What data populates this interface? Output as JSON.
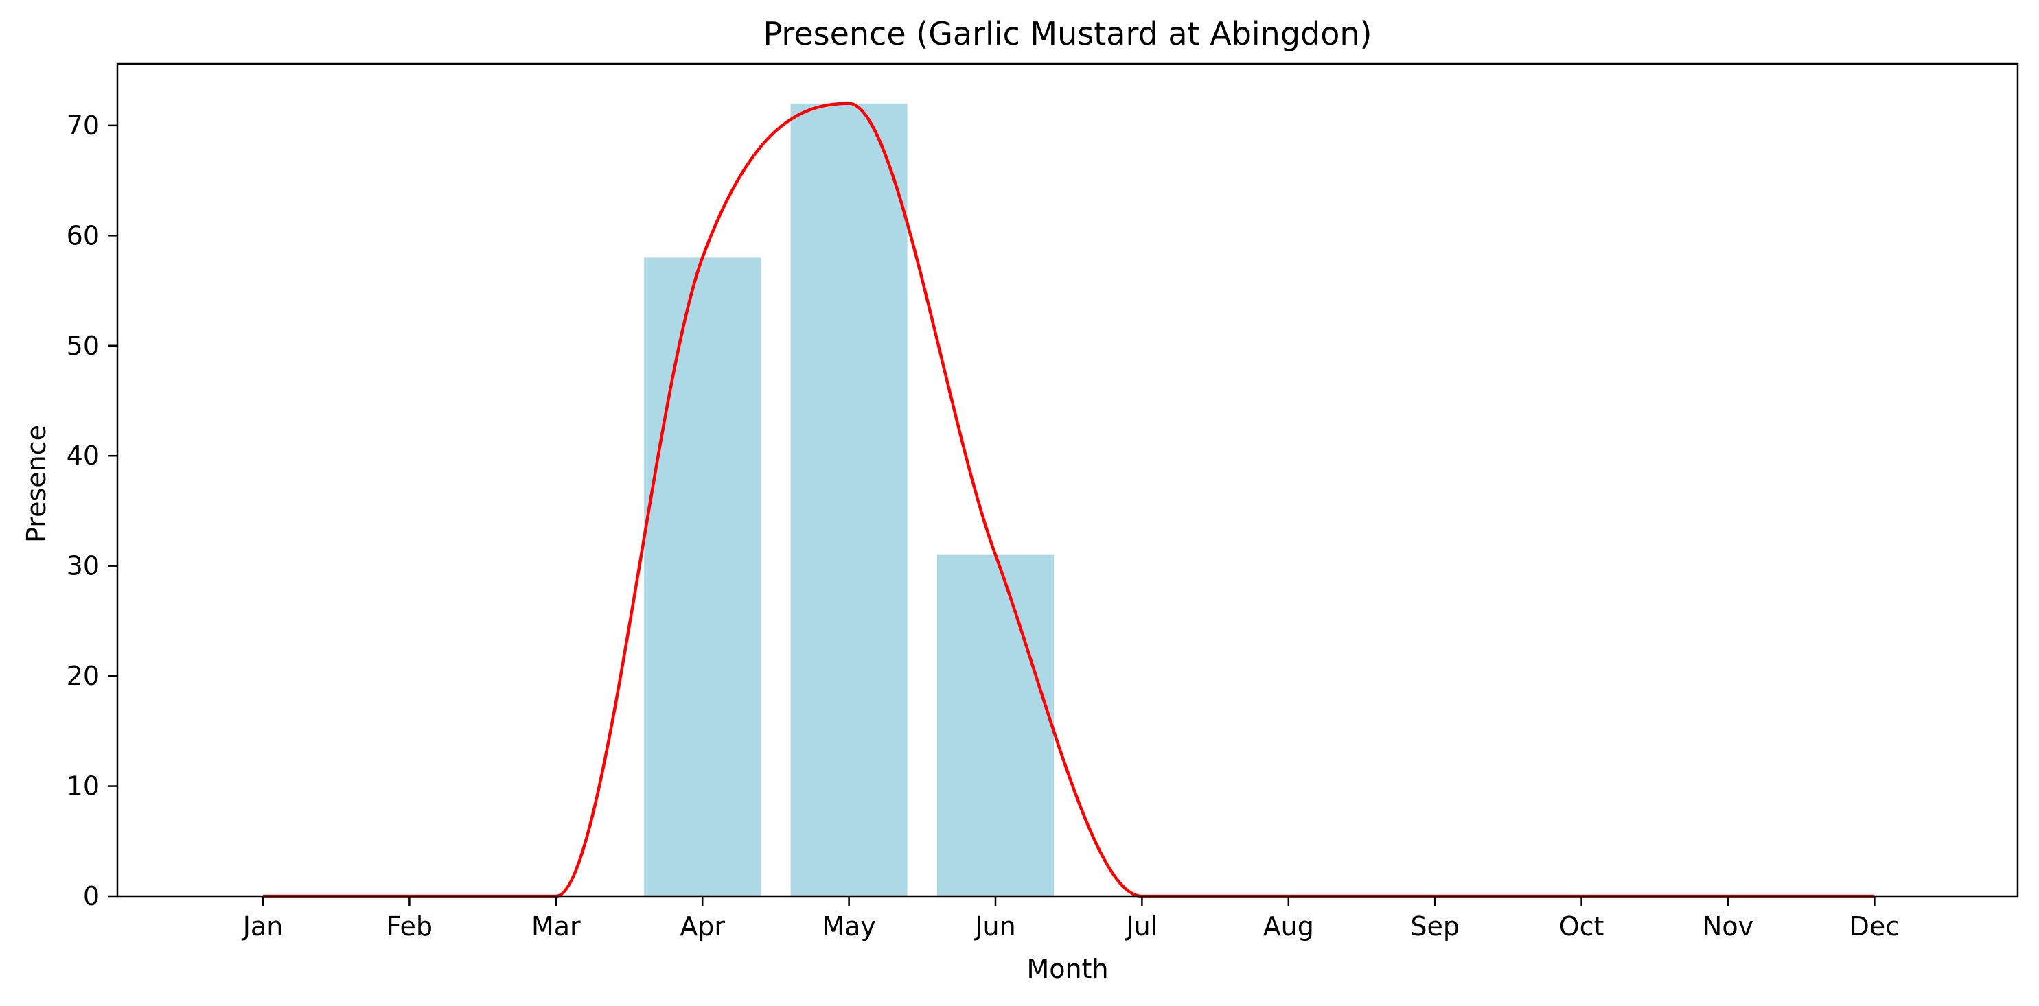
{
  "chart_data": {
    "type": "bar",
    "title": "Presence (Garlic Mustard at Abingdon)",
    "xlabel": "Month",
    "ylabel": "Presence",
    "categories": [
      "Jan",
      "Feb",
      "Mar",
      "Apr",
      "May",
      "Jun",
      "Jul",
      "Aug",
      "Sep",
      "Oct",
      "Nov",
      "Dec"
    ],
    "values": [
      0,
      0,
      0,
      58,
      72,
      31,
      0,
      0,
      0,
      0,
      0,
      0
    ],
    "ylim": [
      0,
      75.6
    ],
    "yticks": [
      0,
      10,
      20,
      30,
      40,
      50,
      60,
      70
    ],
    "grid": false,
    "bar_color": "#add8e6",
    "line_color": "#ff0000",
    "smoothed_line": true
  }
}
